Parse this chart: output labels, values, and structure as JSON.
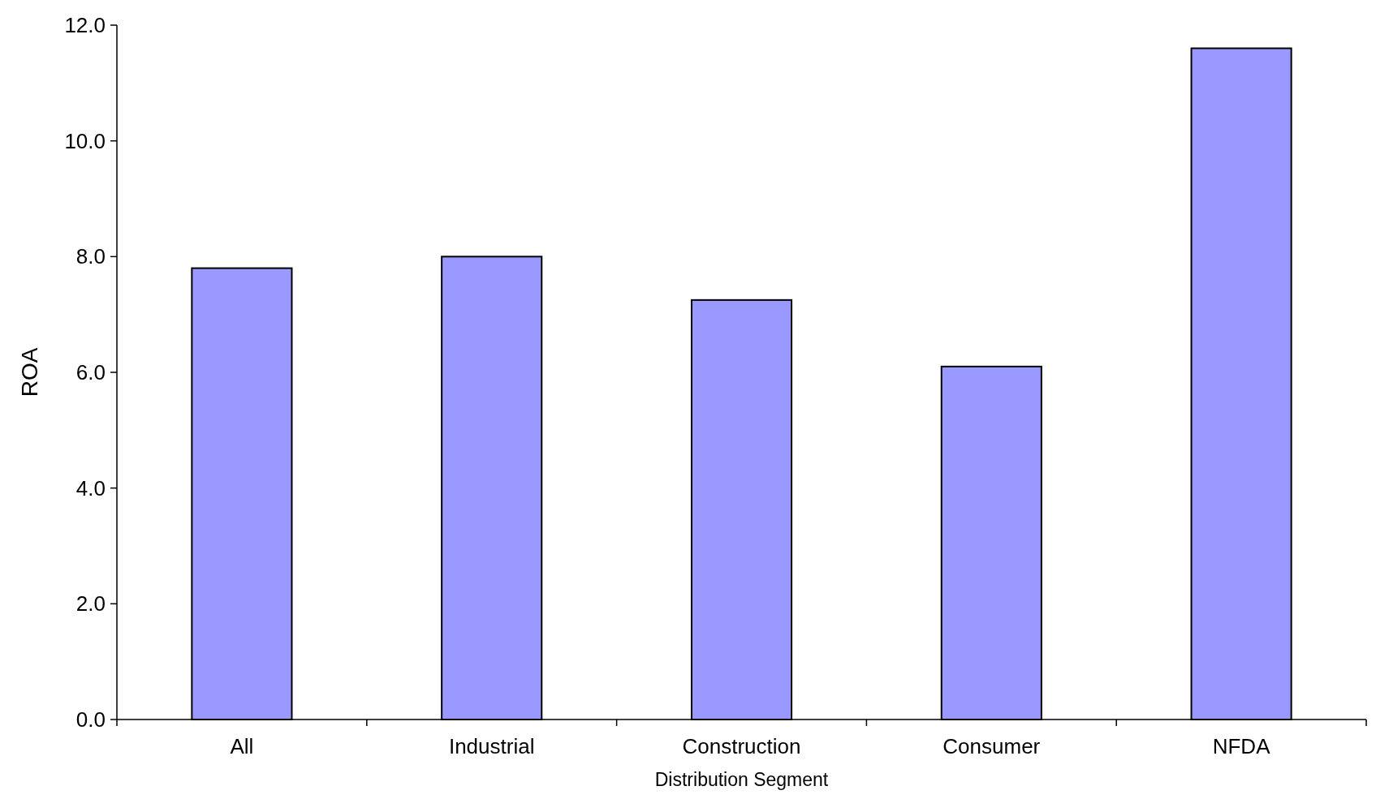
{
  "chart_data": {
    "type": "bar",
    "xlabel": "Distribution Segment",
    "ylabel": "ROA",
    "categories": [
      "All",
      "Industrial",
      "Construction",
      "Consumer",
      "NFDA"
    ],
    "values": [
      7.8,
      8.0,
      7.25,
      6.1,
      11.6
    ],
    "color": "#9999ff",
    "ylim": [
      0,
      12
    ],
    "yticks": [
      {
        "value": 0,
        "label": "0.0"
      },
      {
        "value": 2,
        "label": "2.0"
      },
      {
        "value": 4,
        "label": "4.0"
      },
      {
        "value": 6,
        "label": "6.0"
      },
      {
        "value": 8,
        "label": "8.0"
      },
      {
        "value": 10,
        "label": "10.0"
      },
      {
        "value": 12,
        "label": "12.0"
      }
    ],
    "grid": false
  }
}
